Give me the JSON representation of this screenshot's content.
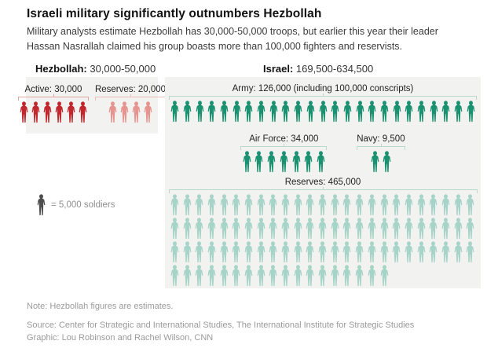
{
  "header": {
    "title": "Israeli military significantly outnumbers Hezbollah",
    "subtitle": "Military analysts estimate Hezbollah has 30,000-50,000 troops, but earlier this year their leader Hassan Nasrallah claimed his group boasts more than 100,000 fighters and reservists."
  },
  "hezbollah": {
    "header_label": "Hezbollah:",
    "header_value": " 30,000-50,000",
    "active": {
      "label": "Active: 30,000",
      "icons": 6,
      "color": "#c0282e"
    },
    "reserves": {
      "label": "Reserves: 20,000",
      "icons": 4,
      "color": "#e6948f"
    }
  },
  "israel": {
    "header_label": "Israel:",
    "header_value": " 169,500-634,500",
    "army": {
      "label": "Army: 126,000 (including 100,000 conscripts)",
      "icons": 25,
      "color": "#1a9170"
    },
    "air_force": {
      "label": "Air Force: 34,000",
      "icons": 7,
      "color": "#1a9170"
    },
    "navy": {
      "label": "Navy: 9,500",
      "icons": 2,
      "color": "#1a9170"
    },
    "reserves": {
      "label": "Reserves: 465,000",
      "icons": 93,
      "color": "#a7d4c8"
    }
  },
  "legend": {
    "icon_count": 1,
    "color": "#4d4d4d",
    "label": "= 5,000 soldiers"
  },
  "footer": {
    "note": "Note: Hezbollah figures are estimates.",
    "source": "Source: Center for Strategic and International Studies, The International Institute for Strategic Studies",
    "credit": "Graphic: Lou Robinson and Rachel Wilson, CNN"
  },
  "colors": {
    "hezbollah_active": "#c0282e",
    "hezbollah_reserves": "#e6948f",
    "israel_forces": "#1a9170",
    "israel_reserves": "#a7d4c8",
    "panel_background": "#f2f2f0"
  },
  "chart_data": {
    "type": "pictogram",
    "title": "Israeli military significantly outnumbers Hezbollah",
    "unit_per_icon": 5000,
    "legend": "1 icon = 5,000 soldiers",
    "groups": [
      {
        "name": "Hezbollah",
        "total_label": "30,000-50,000",
        "series": [
          {
            "name": "Active",
            "value": 30000,
            "icons": 6
          },
          {
            "name": "Reserves",
            "value": 20000,
            "icons": 4
          }
        ]
      },
      {
        "name": "Israel",
        "total_label": "169,500-634,500",
        "series": [
          {
            "name": "Army",
            "value": 126000,
            "icons": 25,
            "annotation": "including 100,000 conscripts"
          },
          {
            "name": "Air Force",
            "value": 34000,
            "icons": 7
          },
          {
            "name": "Navy",
            "value": 9500,
            "icons": 2
          },
          {
            "name": "Reserves",
            "value": 465000,
            "icons": 93
          }
        ]
      }
    ]
  }
}
